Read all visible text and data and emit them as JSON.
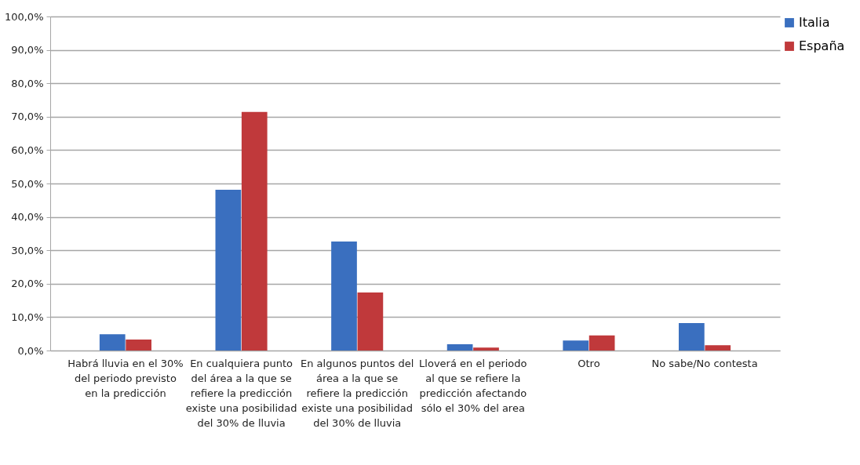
{
  "chart_data": {
    "type": "bar",
    "categories": [
      "Habrá lluvia en el 30% del periodo previsto en la predicción",
      "En cualquiera punto del área a la que se refiere la predicción existe una posibilidad del 30% de lluvia",
      "En algunos puntos del área a la que se refiere la predicción existe una posibilidad del 30% de lluvia",
      "Lloverá en el periodo al que se refiere la predicción afectando sólo el 30% del area",
      "Otro",
      "No sabe/No contesta"
    ],
    "series": [
      {
        "name": "Italia",
        "color": "#3a6fbf",
        "values": [
          4.9,
          48.1,
          32.6,
          1.9,
          3.0,
          8.2
        ]
      },
      {
        "name": "España",
        "color": "#c0393b",
        "values": [
          3.3,
          71.4,
          17.4,
          0.9,
          4.5,
          1.6
        ]
      }
    ],
    "ylim": [
      0,
      100
    ],
    "yticks": [
      {
        "value": 0,
        "label": "0,0%"
      },
      {
        "value": 10,
        "label": "10,0%"
      },
      {
        "value": 20,
        "label": "20,0%"
      },
      {
        "value": 30,
        "label": "30,0%"
      },
      {
        "value": 40,
        "label": "40,0%"
      },
      {
        "value": 50,
        "label": "50,0%"
      },
      {
        "value": 60,
        "label": "60,0%"
      },
      {
        "value": 70,
        "label": "70,0%"
      },
      {
        "value": 80,
        "label": "80,0%"
      },
      {
        "value": 90,
        "label": "90,0%"
      },
      {
        "value": 100,
        "label": "100,0%"
      }
    ],
    "grid": "y",
    "legend": "right"
  }
}
